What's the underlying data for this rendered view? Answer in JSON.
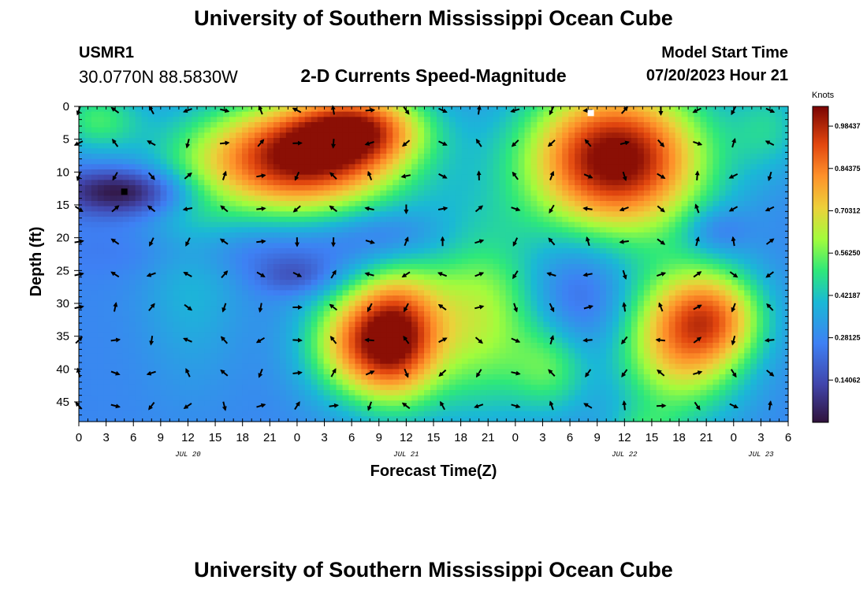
{
  "header": {
    "main_title": "University of Southern Mississippi Ocean Cube",
    "station_id": "USMR1",
    "station_coords": "30.0770N  88.5830W",
    "subtitle": "2-D Currents Speed-Magnitude",
    "model_start_label": "Model Start Time",
    "model_start_time": "07/20/2023 Hour 21"
  },
  "footer": {
    "repeat_title": "University of Southern Mississippi Ocean Cube"
  },
  "chart_data": {
    "type": "heatmap",
    "title": "2-D Currents Speed-Magnitude",
    "xlabel": "Forecast Time(Z)",
    "ylabel": "Depth (ft)",
    "xlim": [
      0,
      78
    ],
    "ylim": [
      0,
      48
    ],
    "x_tick_values": [
      0,
      3,
      6,
      9,
      12,
      15,
      18,
      21,
      24,
      27,
      30,
      33,
      36,
      39,
      42,
      45,
      48,
      51,
      54,
      57,
      60,
      63,
      66,
      69,
      72,
      75,
      78
    ],
    "x_tick_labels": [
      "0",
      "3",
      "6",
      "9",
      "12",
      "15",
      "18",
      "21",
      "0",
      "3",
      "6",
      "9",
      "12",
      "15",
      "18",
      "21",
      "0",
      "3",
      "6",
      "9",
      "12",
      "15",
      "18",
      "21",
      "0",
      "3",
      "6"
    ],
    "date_labels": [
      {
        "text": "JUL 20",
        "hour": 12
      },
      {
        "text": "JUL 21",
        "hour": 36
      },
      {
        "text": "JUL 22",
        "hour": 60
      },
      {
        "text": "JUL 23",
        "hour": 75
      }
    ],
    "y_tick_values": [
      0,
      5,
      10,
      15,
      20,
      25,
      30,
      35,
      40,
      45
    ],
    "y_tick_labels": [
      "0",
      "5",
      "10",
      "15",
      "20",
      "25",
      "30",
      "35",
      "40",
      "45"
    ],
    "colorbar": {
      "title": "Knots",
      "min": 0,
      "max": 1.05,
      "tick_values": [
        0.98437,
        0.84375,
        0.70312,
        0.5625,
        0.42187,
        0.28125,
        0.14062
      ],
      "tick_labels": [
        "0.98437",
        "0.84375",
        "0.70312",
        "0.56250",
        "0.42187",
        "0.28125",
        "0.14062"
      ]
    },
    "speed_field_blobs": [
      {
        "hour": 2,
        "depth": 2,
        "sx": 3.5,
        "sy": 3.5,
        "amp": 0.23
      },
      {
        "hour": 12.5,
        "depth": 24,
        "sx": 4,
        "sy": 12,
        "amp": 0.12
      },
      {
        "hour": 5,
        "depth": 13,
        "sx": 5,
        "sy": 2.5,
        "amp": -0.3
      },
      {
        "hour": 24,
        "depth": 8,
        "sx": 8,
        "sy": 6,
        "amp": 0.75
      },
      {
        "hour": 31,
        "depth": 3,
        "sx": 5,
        "sy": 4,
        "amp": 0.45
      },
      {
        "hour": 22,
        "depth": 22,
        "sx": 14,
        "sy": 3,
        "amp": -0.08
      },
      {
        "hour": 24,
        "depth": 26,
        "sx": 3,
        "sy": 2,
        "amp": -0.12
      },
      {
        "hour": 34,
        "depth": 19,
        "sx": 4,
        "sy": 2.5,
        "amp": -0.08
      },
      {
        "hour": 35,
        "depth": 35,
        "sx": 3.5,
        "sy": 7,
        "amp": 0.6
      },
      {
        "hour": 30,
        "depth": 36,
        "sx": 4,
        "sy": 6,
        "amp": 0.4
      },
      {
        "hour": 44,
        "depth": 32,
        "sx": 5,
        "sy": 10,
        "amp": 0.35
      },
      {
        "hour": 52,
        "depth": 40,
        "sx": 3,
        "sy": 5,
        "amp": 0.2
      },
      {
        "hour": 59,
        "depth": 8,
        "sx": 7,
        "sy": 8,
        "amp": 0.8
      },
      {
        "hour": 66,
        "depth": 36,
        "sx": 5,
        "sy": 8,
        "amp": 0.45
      },
      {
        "hour": 70,
        "depth": 32,
        "sx": 4,
        "sy": 5,
        "amp": 0.35
      },
      {
        "hour": 76,
        "depth": 3,
        "sx": 3,
        "sy": 5,
        "amp": 0.15
      },
      {
        "hour": 55,
        "depth": 29,
        "sx": 4,
        "sy": 6,
        "amp": -0.12
      },
      {
        "hour": 70,
        "depth": 19,
        "sx": 2.5,
        "sy": 2.5,
        "amp": -0.12
      },
      {
        "hour": 62,
        "depth": 50,
        "sx": 3,
        "sy": 3,
        "amp": 0.15
      }
    ],
    "markers": [
      {
        "hour": 5,
        "depth": 13,
        "color": "#000000"
      },
      {
        "hour": 56.3,
        "depth": 1,
        "color": "#ffffff"
      }
    ]
  }
}
